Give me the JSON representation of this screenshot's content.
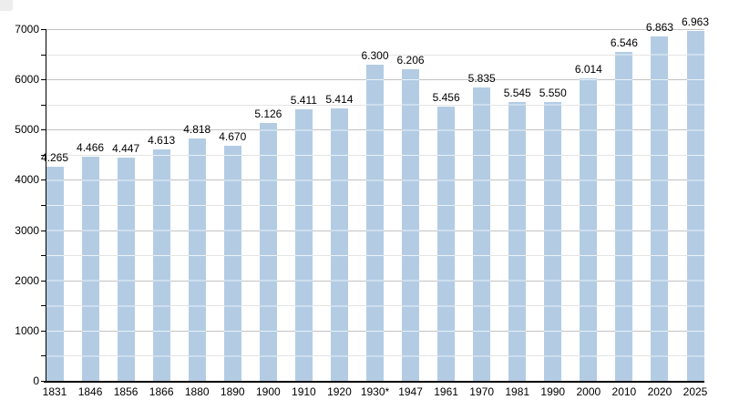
{
  "page": {
    "background_color": "#ffffff",
    "corner_artifact_color": "#ededed"
  },
  "chart_data": {
    "type": "bar",
    "title": "",
    "xlabel": "",
    "ylabel": "",
    "categories": [
      "1831",
      "1846",
      "1856",
      "1866",
      "1880",
      "1890",
      "1900",
      "1910",
      "1920",
      "1930*",
      "1947",
      "1961",
      "1970",
      "1981",
      "1990",
      "2000",
      "2010",
      "2020",
      "2025"
    ],
    "values": [
      4265,
      4466,
      4447,
      4613,
      4818,
      4670,
      5126,
      5411,
      5414,
      6300,
      6206,
      5456,
      5835,
      5545,
      5550,
      6014,
      6546,
      6863,
      6963
    ],
    "value_labels": [
      "4.265",
      "4.466",
      "4.447",
      "4.613",
      "4.818",
      "4.670",
      "5.126",
      "5.411",
      "5.414",
      "6.300",
      "6.206",
      "5.456",
      "5.835",
      "5.545",
      "5.550",
      "6.014",
      "6.546",
      "6.863",
      "6.963"
    ],
    "ylim": [
      0,
      7000
    ],
    "ytick_labels": [
      "0",
      "1000",
      "2000",
      "3000",
      "4000",
      "5000",
      "6000",
      "7000"
    ],
    "ytick_major_step": 1000,
    "ytick_minor_step": 500,
    "grid": true,
    "legend_position": "none",
    "colors": {
      "bar_fill": "#b3cce4",
      "grid_major": "#c3c3c3",
      "grid_minor": "#e4e4e4",
      "grid_over_bar": "rgba(255,255,255,0.72)",
      "axis": "#000000",
      "text": "#000000"
    }
  }
}
